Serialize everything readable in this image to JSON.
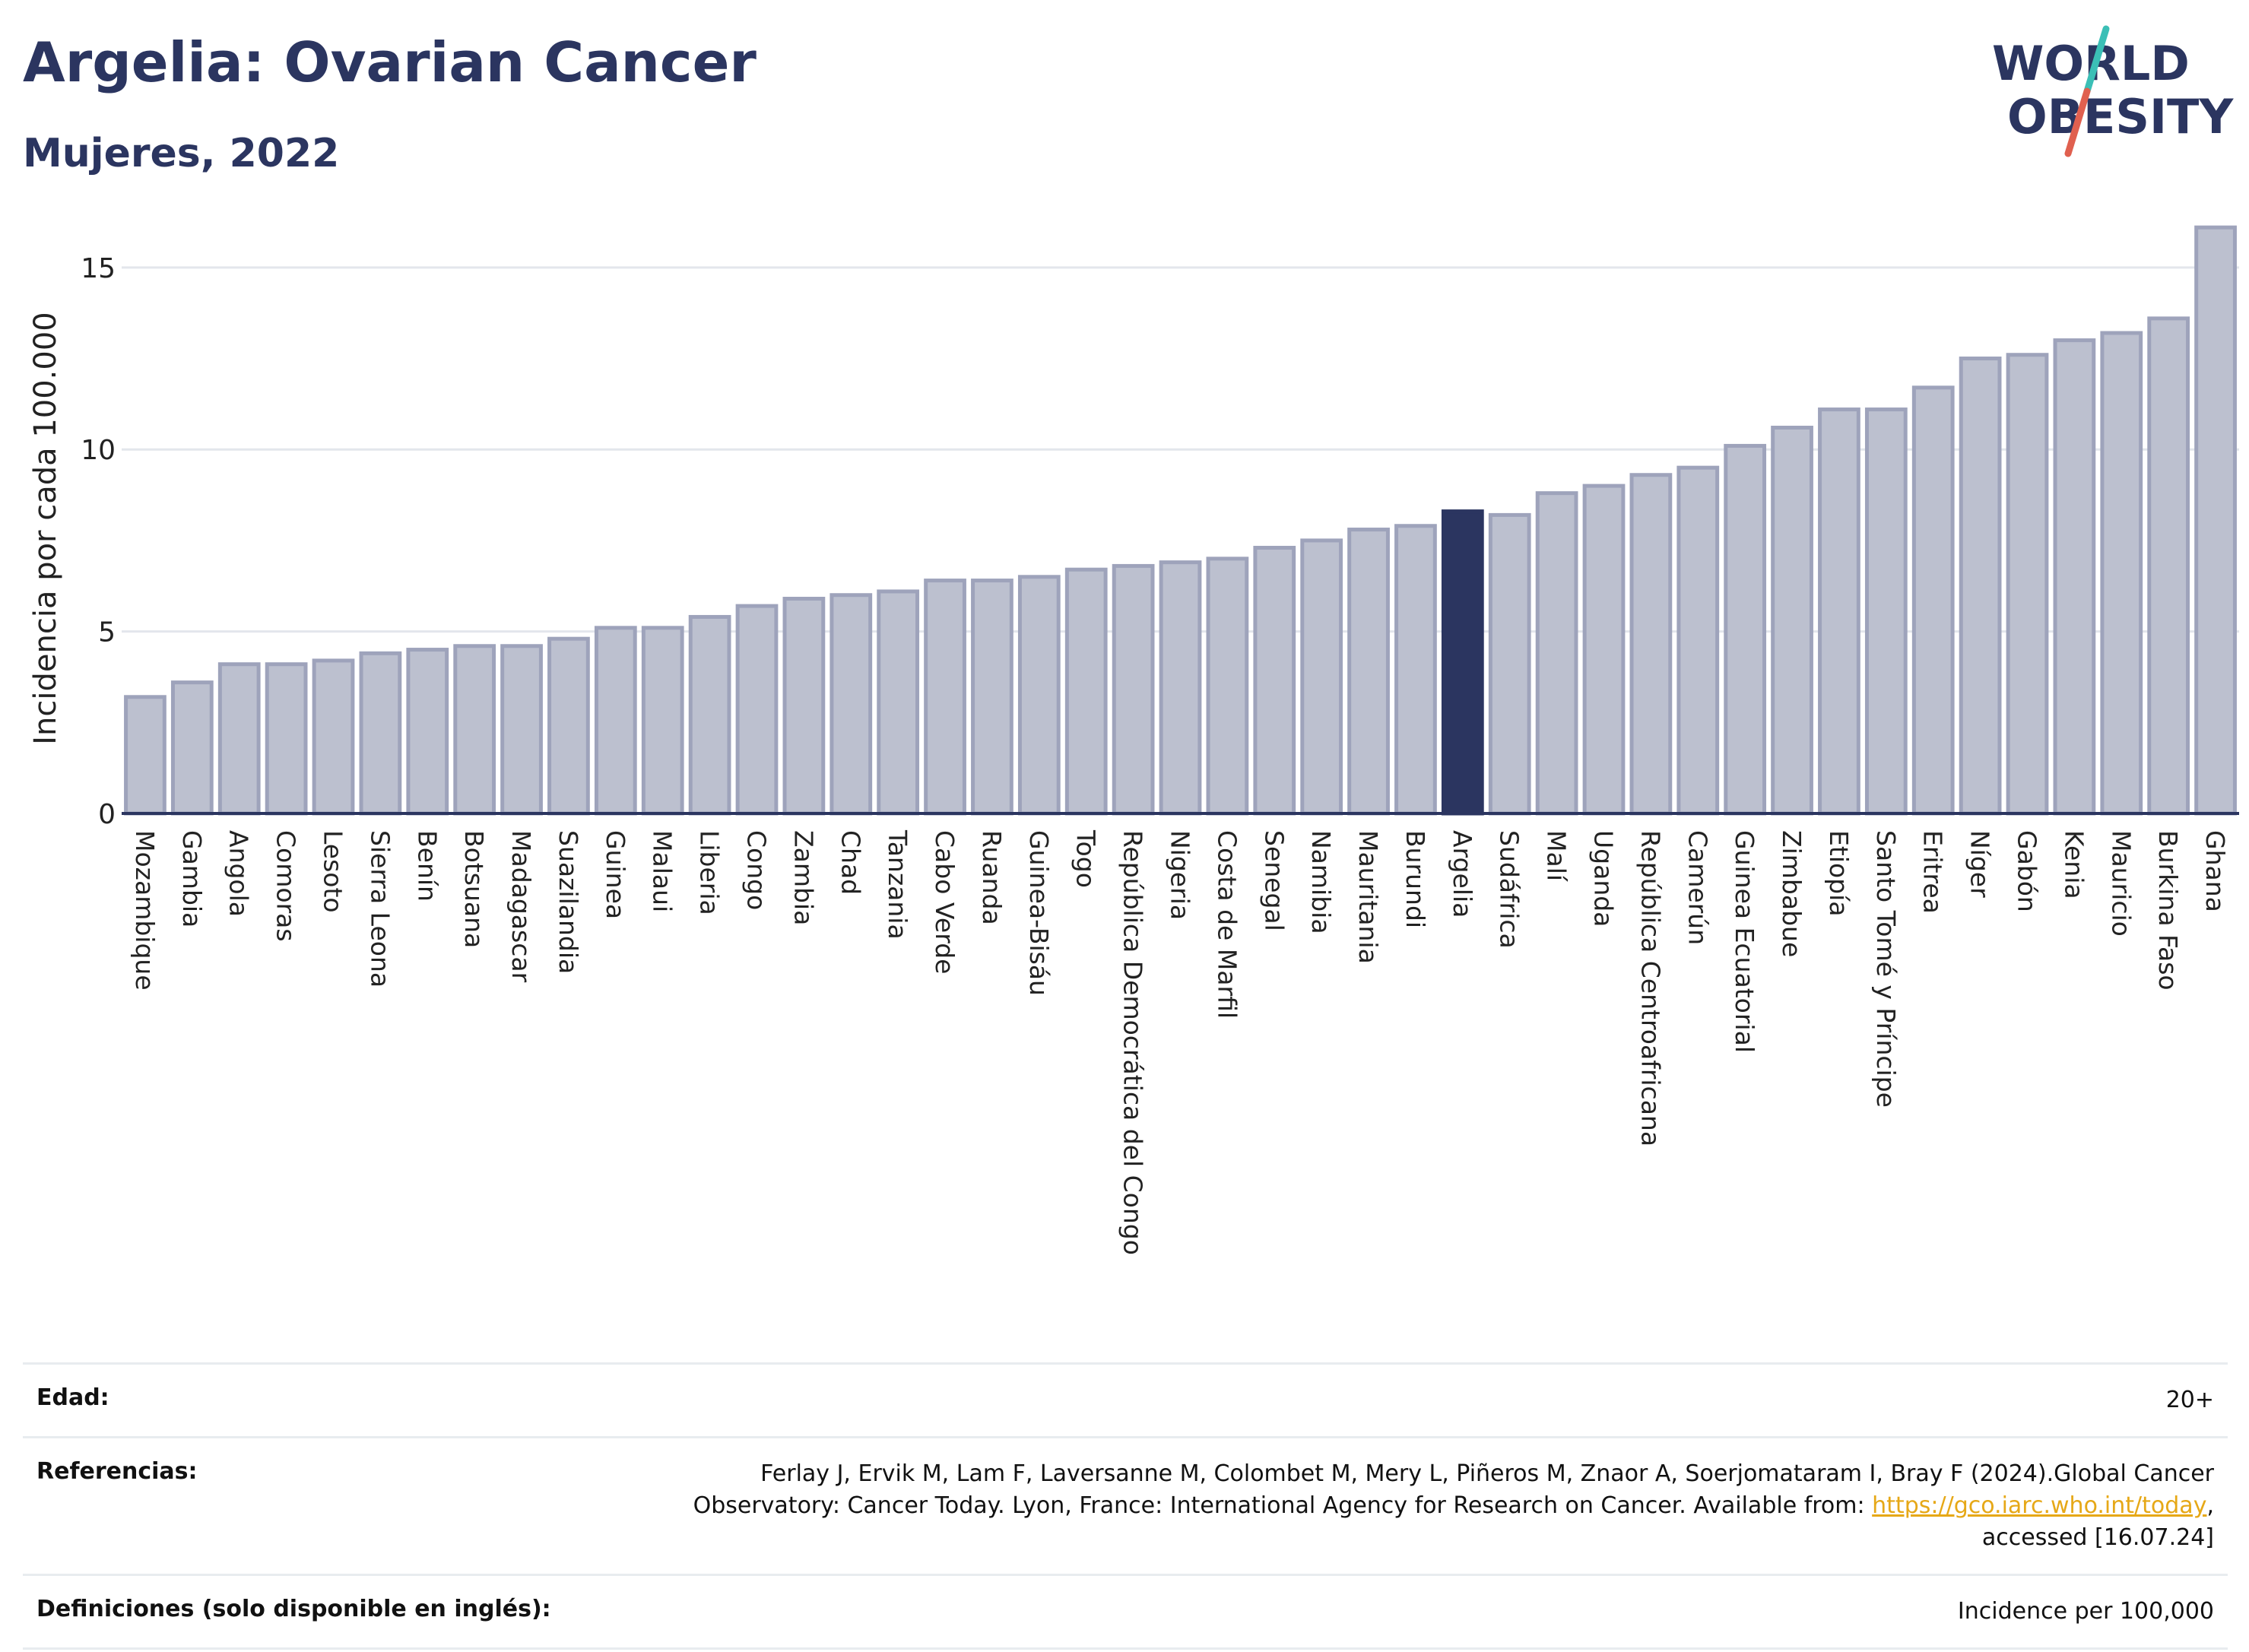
{
  "header": {
    "title": "Argelia: Ovarian Cancer",
    "subtitle": "Mujeres, 2022",
    "logo_line1": "WORLD",
    "logo_line2": "OBESITY"
  },
  "colors": {
    "bar_default": "#bcc0cf",
    "bar_outline": "#9ea3bb",
    "bar_highlight": "#2b3560",
    "title": "#2b3560",
    "logo_accent_teal": "#3bbfb6",
    "logo_accent_red": "#e0604f",
    "link": "#e6a817"
  },
  "chart_data": {
    "type": "bar",
    "title": "Argelia: Ovarian Cancer",
    "subtitle": "Mujeres, 2022",
    "ylabel": "Incidencia por cada 100.000",
    "xlabel": "",
    "ylim": [
      0,
      16.5
    ],
    "yticks": [
      0,
      5,
      10,
      15
    ],
    "grid": true,
    "highlight": "Argelia",
    "categories": [
      "Mozambique",
      "Gambia",
      "Angola",
      "Comoras",
      "Lesoto",
      "Sierra Leona",
      "Benín",
      "Botsuana",
      "Madagascar",
      "Suazilandia",
      "Guinea",
      "Malaui",
      "Liberia",
      "Congo",
      "Zambia",
      "Chad",
      "Tanzania",
      "Cabo Verde",
      "Ruanda",
      "Guinea-Bisáu",
      "Togo",
      "República Democrática del Congo",
      "Nigeria",
      "Costa de Marfil",
      "Senegal",
      "Namibia",
      "Mauritania",
      "Burundi",
      "Argelia",
      "Sudáfrica",
      "Malí",
      "Uganda",
      "República Centroafricana",
      "Camerún",
      "Guinea Ecuatorial",
      "Zimbabue",
      "Etiopía",
      "Santo Tomé y Príncipe",
      "Eritrea",
      "Níger",
      "Gabón",
      "Kenia",
      "Mauricio",
      "Burkina Faso",
      "Ghana"
    ],
    "values": [
      3.2,
      3.6,
      4.1,
      4.1,
      4.2,
      4.4,
      4.5,
      4.6,
      4.6,
      4.8,
      5.1,
      5.1,
      5.4,
      5.7,
      5.9,
      6.0,
      6.1,
      6.4,
      6.4,
      6.5,
      6.7,
      6.8,
      6.9,
      7.0,
      7.3,
      7.5,
      7.8,
      7.9,
      8.3,
      8.2,
      8.8,
      9.0,
      9.3,
      9.5,
      10.1,
      10.6,
      11.1,
      11.1,
      11.7,
      12.5,
      12.6,
      13.0,
      13.2,
      13.6,
      16.1
    ]
  },
  "info": {
    "age_label": "Edad:",
    "age_value": "20+",
    "ref_label": "Referencias:",
    "ref_text_before": "Ferlay J, Ervik M, Lam F, Laversanne M, Colombet M, Mery L, Piñeros M, Znaor A, Soerjomataram I, Bray F (2024).Global Cancer Observatory: Cancer Today. Lyon, France: International Agency for Research on Cancer. Available from: ",
    "ref_link": "https://gco.iarc.who.int/today",
    "ref_text_after": ", accessed [16.07.24]",
    "def_label": "Definiciones (solo disponible en inglés):",
    "def_value": "Incidence per 100,000"
  }
}
